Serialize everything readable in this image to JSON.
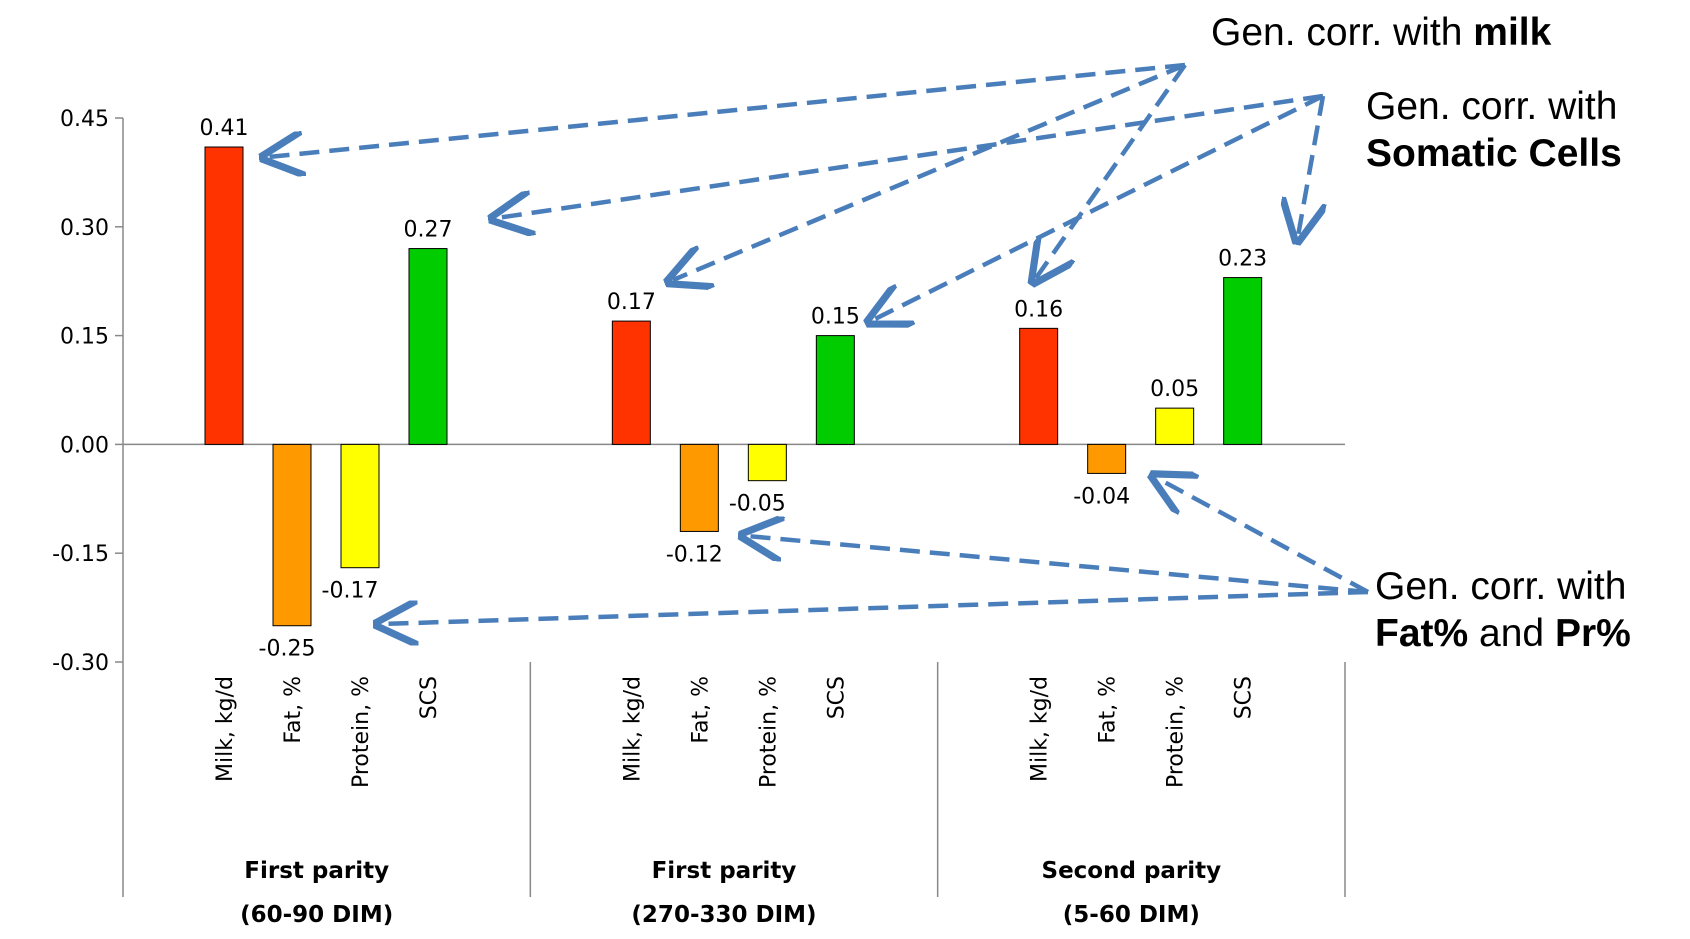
{
  "chart_data": {
    "type": "bar",
    "ylim": [
      -0.3,
      0.45
    ],
    "yticks": [
      "0.45",
      "0.30",
      "0.15",
      "0.00",
      "-0.15",
      "-0.30"
    ],
    "grid": false,
    "legend": "none",
    "categories": [
      "Milk, kg/d",
      "Fat, %",
      "Protein, %",
      "SCS"
    ],
    "bar_colors": [
      "#ff3300",
      "#ff9900",
      "#ffff00",
      "#00cc00"
    ],
    "groups": [
      {
        "label_line1": "First parity",
        "label_line2": "(60-90 DIM)",
        "values": [
          0.41,
          -0.25,
          -0.17,
          0.27
        ],
        "labels": [
          "0.41",
          "-0.25",
          "-0.17",
          "0.27"
        ]
      },
      {
        "label_line1": "First parity",
        "label_line2": "(270-330 DIM)",
        "values": [
          0.17,
          -0.12,
          -0.05,
          0.15
        ],
        "labels": [
          "0.17",
          "-0.12",
          "-0.05",
          "0.15"
        ]
      },
      {
        "label_line1": "Second parity",
        "label_line2": "(5-60 DIM)",
        "values": [
          0.16,
          -0.04,
          0.05,
          0.23
        ],
        "labels": [
          "0.16",
          "-0.04",
          "0.05",
          "0.23"
        ]
      }
    ]
  },
  "annotations": {
    "milk": {
      "prefix": "Gen. corr. with ",
      "bold": "milk"
    },
    "scs": {
      "line1": "Gen. corr. with",
      "bold": "Somatic Cells"
    },
    "fatpr": {
      "line1": "Gen. corr. with",
      "bold1": "Fat%",
      "mid": " and ",
      "bold2": "Pr%"
    },
    "arrow_color": "#4a7ebb"
  }
}
